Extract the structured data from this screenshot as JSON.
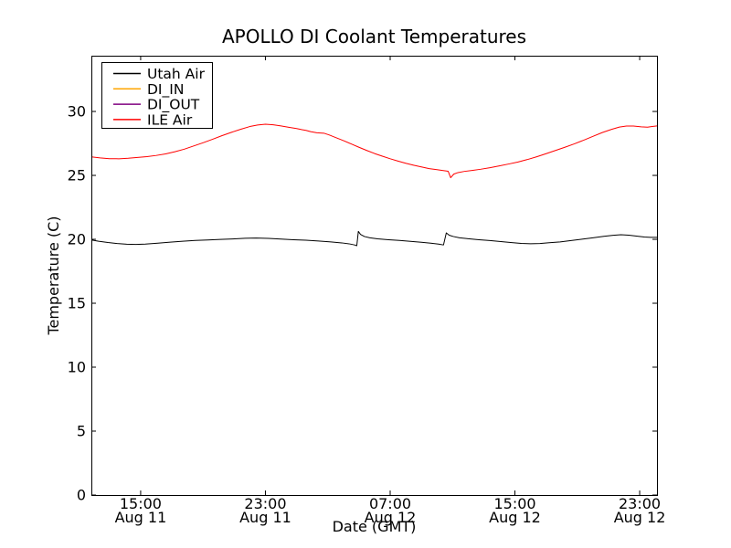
{
  "chart_data": {
    "type": "line",
    "title": "APOLLO DI Coolant Temperatures",
    "xlabel": "Date (GMT)",
    "ylabel": "Temperature (C)",
    "x_unit": "hours_since_Aug11_0000_GMT",
    "xlim": [
      11.84,
      48.11
    ],
    "ylim": [
      0,
      34.36
    ],
    "grid": false,
    "legend_position": "upper left",
    "background_color": "#ffffff",
    "axis_color": "#000000",
    "x_ticks": [
      {
        "hour": 15,
        "time": "15:00",
        "date": "Aug 11"
      },
      {
        "hour": 23,
        "time": "23:00",
        "date": "Aug 11"
      },
      {
        "hour": 31,
        "time": "07:00",
        "date": "Aug 12"
      },
      {
        "hour": 39,
        "time": "15:00",
        "date": "Aug 12"
      },
      {
        "hour": 47,
        "time": "23:00",
        "date": "Aug 12"
      }
    ],
    "y_ticks": [
      0,
      5,
      10,
      15,
      20,
      25,
      30
    ],
    "series": [
      {
        "name": "Utah Air",
        "color": "#000000",
        "points": [
          [
            11.84,
            19.95
          ],
          [
            12.3,
            19.85
          ],
          [
            12.9,
            19.75
          ],
          [
            13.5,
            19.67
          ],
          [
            14.1,
            19.62
          ],
          [
            14.7,
            19.6
          ],
          [
            15.3,
            19.63
          ],
          [
            16.1,
            19.7
          ],
          [
            16.9,
            19.78
          ],
          [
            17.7,
            19.85
          ],
          [
            18.5,
            19.91
          ],
          [
            19.3,
            19.95
          ],
          [
            20.1,
            19.99
          ],
          [
            20.9,
            20.03
          ],
          [
            21.7,
            20.08
          ],
          [
            22.4,
            20.1
          ],
          [
            23.2,
            20.07
          ],
          [
            24.0,
            20.02
          ],
          [
            24.8,
            19.97
          ],
          [
            25.6,
            19.93
          ],
          [
            26.4,
            19.87
          ],
          [
            27.2,
            19.8
          ],
          [
            27.9,
            19.72
          ],
          [
            28.4,
            19.64
          ],
          [
            28.72,
            19.56
          ],
          [
            28.86,
            19.5
          ],
          [
            28.96,
            20.62
          ],
          [
            29.1,
            20.38
          ],
          [
            29.35,
            20.22
          ],
          [
            29.7,
            20.12
          ],
          [
            30.2,
            20.04
          ],
          [
            30.9,
            19.97
          ],
          [
            31.6,
            19.91
          ],
          [
            32.3,
            19.84
          ],
          [
            33.0,
            19.77
          ],
          [
            33.6,
            19.7
          ],
          [
            34.1,
            19.63
          ],
          [
            34.42,
            19.56
          ],
          [
            34.6,
            20.5
          ],
          [
            34.78,
            20.32
          ],
          [
            35.05,
            20.22
          ],
          [
            35.45,
            20.12
          ],
          [
            36.0,
            20.05
          ],
          [
            36.7,
            19.97
          ],
          [
            37.4,
            19.9
          ],
          [
            38.1,
            19.82
          ],
          [
            38.8,
            19.74
          ],
          [
            39.4,
            19.68
          ],
          [
            40.0,
            19.65
          ],
          [
            40.6,
            19.67
          ],
          [
            41.2,
            19.73
          ],
          [
            41.9,
            19.8
          ],
          [
            42.6,
            19.9
          ],
          [
            43.3,
            20.01
          ],
          [
            44.0,
            20.12
          ],
          [
            44.7,
            20.23
          ],
          [
            45.3,
            20.31
          ],
          [
            45.8,
            20.36
          ],
          [
            46.3,
            20.32
          ],
          [
            46.8,
            20.25
          ],
          [
            47.3,
            20.18
          ],
          [
            47.7,
            20.15
          ],
          [
            48.11,
            20.15
          ]
        ]
      },
      {
        "name": "DI_IN",
        "color": "#ffa500",
        "points": []
      },
      {
        "name": "DI_OUT",
        "color": "#800080",
        "points": []
      },
      {
        "name": "ILE Air",
        "color": "#ff0000",
        "points": [
          [
            11.84,
            26.45
          ],
          [
            12.4,
            26.37
          ],
          [
            13.0,
            26.31
          ],
          [
            13.6,
            26.3
          ],
          [
            14.2,
            26.34
          ],
          [
            14.8,
            26.4
          ],
          [
            15.4,
            26.47
          ],
          [
            16.0,
            26.56
          ],
          [
            16.6,
            26.68
          ],
          [
            17.2,
            26.85
          ],
          [
            17.8,
            27.05
          ],
          [
            18.4,
            27.3
          ],
          [
            19.0,
            27.55
          ],
          [
            19.6,
            27.82
          ],
          [
            20.2,
            28.1
          ],
          [
            20.8,
            28.36
          ],
          [
            21.4,
            28.6
          ],
          [
            22.0,
            28.82
          ],
          [
            22.5,
            28.94
          ],
          [
            23.0,
            29.0
          ],
          [
            23.5,
            28.96
          ],
          [
            24.0,
            28.87
          ],
          [
            24.5,
            28.76
          ],
          [
            25.0,
            28.66
          ],
          [
            25.35,
            28.57
          ],
          [
            25.6,
            28.52
          ],
          [
            25.9,
            28.42
          ],
          [
            26.3,
            28.33
          ],
          [
            26.75,
            28.3
          ],
          [
            27.1,
            28.16
          ],
          [
            27.5,
            27.96
          ],
          [
            28.0,
            27.72
          ],
          [
            28.5,
            27.46
          ],
          [
            29.0,
            27.2
          ],
          [
            29.5,
            26.95
          ],
          [
            30.0,
            26.71
          ],
          [
            30.5,
            26.5
          ],
          [
            31.0,
            26.3
          ],
          [
            31.5,
            26.12
          ],
          [
            32.0,
            25.95
          ],
          [
            32.5,
            25.8
          ],
          [
            33.0,
            25.66
          ],
          [
            33.5,
            25.53
          ],
          [
            34.0,
            25.45
          ],
          [
            34.4,
            25.38
          ],
          [
            34.72,
            25.32
          ],
          [
            34.88,
            24.82
          ],
          [
            35.08,
            25.1
          ],
          [
            35.35,
            25.22
          ],
          [
            35.75,
            25.31
          ],
          [
            36.25,
            25.39
          ],
          [
            36.8,
            25.48
          ],
          [
            37.4,
            25.6
          ],
          [
            38.0,
            25.74
          ],
          [
            38.6,
            25.89
          ],
          [
            39.2,
            26.05
          ],
          [
            39.8,
            26.24
          ],
          [
            40.4,
            26.46
          ],
          [
            41.0,
            26.7
          ],
          [
            41.6,
            26.95
          ],
          [
            42.2,
            27.2
          ],
          [
            42.8,
            27.46
          ],
          [
            43.4,
            27.75
          ],
          [
            44.0,
            28.05
          ],
          [
            44.6,
            28.35
          ],
          [
            45.2,
            28.6
          ],
          [
            45.7,
            28.78
          ],
          [
            46.15,
            28.86
          ],
          [
            46.6,
            28.86
          ],
          [
            47.1,
            28.8
          ],
          [
            47.5,
            28.77
          ],
          [
            47.8,
            28.82
          ],
          [
            48.11,
            28.87
          ]
        ]
      }
    ]
  }
}
